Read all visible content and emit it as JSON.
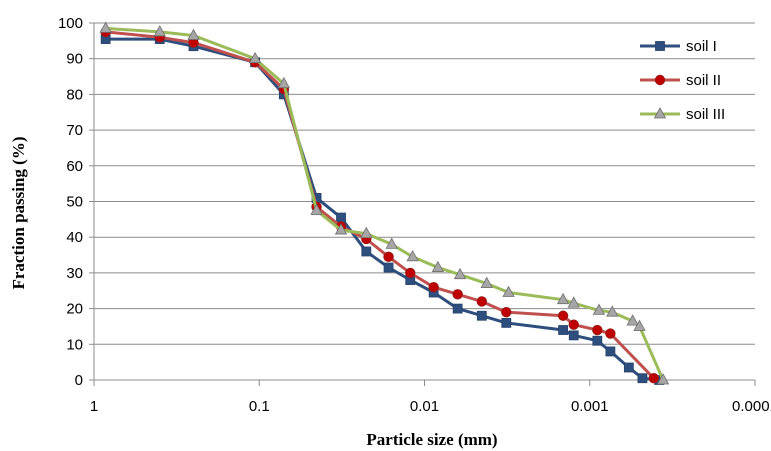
{
  "chart_data": {
    "type": "line",
    "title": "",
    "xlabel": "Particle size (mm)",
    "ylabel": "Fraction passing (%)",
    "x_scale": "log",
    "x_reversed": true,
    "xlim": [
      1,
      0.0001
    ],
    "ylim": [
      0,
      100
    ],
    "x_ticks": [
      "1",
      "0.1",
      "0.01",
      "0.001",
      "0.0001"
    ],
    "y_ticks": [
      "0",
      "10",
      "20",
      "30",
      "40",
      "50",
      "60",
      "70",
      "80",
      "90",
      "100"
    ],
    "grid": "horizontal",
    "legend_position": "right",
    "series": [
      {
        "name": "soil I",
        "color": "#2E4E7E",
        "marker": "square",
        "points": [
          {
            "x": 0.85,
            "y": 95.5
          },
          {
            "x": 0.4,
            "y": 95.5
          },
          {
            "x": 0.25,
            "y": 93.5
          },
          {
            "x": 0.106,
            "y": 89
          },
          {
            "x": 0.071,
            "y": 80
          },
          {
            "x": 0.045,
            "y": 51
          },
          {
            "x": 0.032,
            "y": 45.5
          },
          {
            "x": 0.0225,
            "y": 36
          },
          {
            "x": 0.0165,
            "y": 31.5
          },
          {
            "x": 0.0122,
            "y": 28
          },
          {
            "x": 0.0088,
            "y": 24.5
          },
          {
            "x": 0.0063,
            "y": 20
          },
          {
            "x": 0.0045,
            "y": 18
          },
          {
            "x": 0.0032,
            "y": 16
          },
          {
            "x": 0.00145,
            "y": 14
          },
          {
            "x": 0.00125,
            "y": 12.5
          },
          {
            "x": 0.0009,
            "y": 11
          },
          {
            "x": 0.00075,
            "y": 8
          },
          {
            "x": 0.00058,
            "y": 3.5
          },
          {
            "x": 0.00048,
            "y": 0.5
          },
          {
            "x": 0.00038,
            "y": 0
          }
        ]
      },
      {
        "name": "soil II",
        "color": "#C0504D",
        "marker": "circle",
        "points": [
          {
            "x": 0.85,
            "y": 97.5
          },
          {
            "x": 0.4,
            "y": 96
          },
          {
            "x": 0.25,
            "y": 94.5
          },
          {
            "x": 0.106,
            "y": 89
          },
          {
            "x": 0.071,
            "y": 81.5
          },
          {
            "x": 0.045,
            "y": 48.5
          },
          {
            "x": 0.032,
            "y": 43
          },
          {
            "x": 0.0225,
            "y": 39.5
          },
          {
            "x": 0.0165,
            "y": 34.5
          },
          {
            "x": 0.0122,
            "y": 30
          },
          {
            "x": 0.0088,
            "y": 26
          },
          {
            "x": 0.0063,
            "y": 24
          },
          {
            "x": 0.0045,
            "y": 22
          },
          {
            "x": 0.0032,
            "y": 19
          },
          {
            "x": 0.00145,
            "y": 18
          },
          {
            "x": 0.00125,
            "y": 15.5
          },
          {
            "x": 0.0009,
            "y": 14
          },
          {
            "x": 0.00075,
            "y": 13
          },
          {
            "x": 0.00041,
            "y": 0.5
          }
        ]
      },
      {
        "name": "soil III",
        "color": "#9BBB59",
        "marker": "triangle",
        "points": [
          {
            "x": 0.85,
            "y": 98.5
          },
          {
            "x": 0.4,
            "y": 97.5
          },
          {
            "x": 0.25,
            "y": 96.5
          },
          {
            "x": 0.106,
            "y": 90
          },
          {
            "x": 0.071,
            "y": 83
          },
          {
            "x": 0.045,
            "y": 47.5
          },
          {
            "x": 0.032,
            "y": 42
          },
          {
            "x": 0.0225,
            "y": 41
          },
          {
            "x": 0.0158,
            "y": 38
          },
          {
            "x": 0.0118,
            "y": 34.5
          },
          {
            "x": 0.0083,
            "y": 31.5
          },
          {
            "x": 0.0061,
            "y": 29.5
          },
          {
            "x": 0.0042,
            "y": 27
          },
          {
            "x": 0.0031,
            "y": 24.5
          },
          {
            "x": 0.00145,
            "y": 22.5
          },
          {
            "x": 0.00125,
            "y": 21.5
          },
          {
            "x": 0.00088,
            "y": 19.5
          },
          {
            "x": 0.00073,
            "y": 19
          },
          {
            "x": 0.00055,
            "y": 16.5
          },
          {
            "x": 0.0005,
            "y": 15
          },
          {
            "x": 0.00036,
            "y": 0
          }
        ]
      }
    ]
  }
}
